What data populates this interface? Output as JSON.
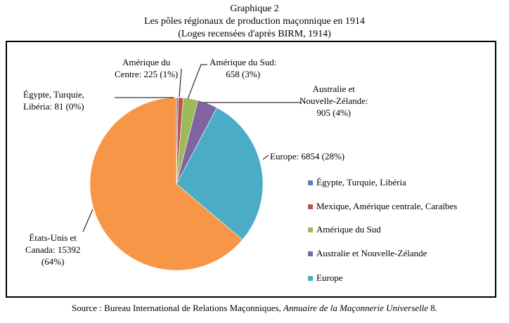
{
  "heading": {
    "line1": "Graphique 2",
    "line2": "Les pôles régionaux de production maçonnique en 1914",
    "line3": "(Loges recensées d'après BIRM, 1914)"
  },
  "chart_data": {
    "type": "pie",
    "start_angle_deg": 0,
    "direction": "clockwise",
    "slices": [
      {
        "label": "Égypte, Turquie, Libéria",
        "value": 81,
        "percent": "0%",
        "color": "#4f81bd"
      },
      {
        "label": "Mexique, Amérique centrale, Caraïbes",
        "value": 225,
        "percent": "1%",
        "color": "#c0504d"
      },
      {
        "label": "Amérique du Sud",
        "value": 658,
        "percent": "3%",
        "color": "#9bbb59"
      },
      {
        "label": "Australie et Nouvelle-Zélande",
        "value": 905,
        "percent": "4%",
        "color": "#8064a2"
      },
      {
        "label": "Europe",
        "value": 6854,
        "percent": "28%",
        "color": "#4bacc6"
      },
      {
        "label": "États-Unis et Canada",
        "value": 15392,
        "percent": "64%",
        "color": "#f79646"
      }
    ],
    "data_labels": {
      "egypt": {
        "l1": "Égypte, Turquie,",
        "l2": "Libéria: 81 (0%)"
      },
      "centre": {
        "l1": "Amérique du",
        "l2": "Centre: 225 (1%)"
      },
      "sud": {
        "l1": "Amérique du Sud:",
        "l2": "658 (3%)"
      },
      "australie": {
        "l1": "Australie et",
        "l2": "Nouvelle-Zélande:",
        "l3": "905 (4%)"
      },
      "europe": {
        "l1": "Europe: 6854 (28%)"
      },
      "usa": {
        "l1": "États-Unis et",
        "l2": "Canada: 15392",
        "l3": "(64%)"
      }
    },
    "legend": [
      {
        "label": "Égypte, Turquie, Libéria",
        "color": "#4f81bd"
      },
      {
        "label": "Mexique, Amérique centrale, Caraïbes",
        "color": "#c0504d"
      },
      {
        "label": "Amérique du Sud",
        "color": "#9bbb59"
      },
      {
        "label": "Australie et Nouvelle-Zélande",
        "color": "#8064a2"
      },
      {
        "label": "Europe",
        "color": "#4bacc6"
      }
    ],
    "legend_position": "right"
  },
  "source": {
    "prefix": "Source : Bureau International de Relations Maçonniques, ",
    "title": "Annuaire de la Maçonnerie Universelle",
    "suffix": " 8."
  }
}
